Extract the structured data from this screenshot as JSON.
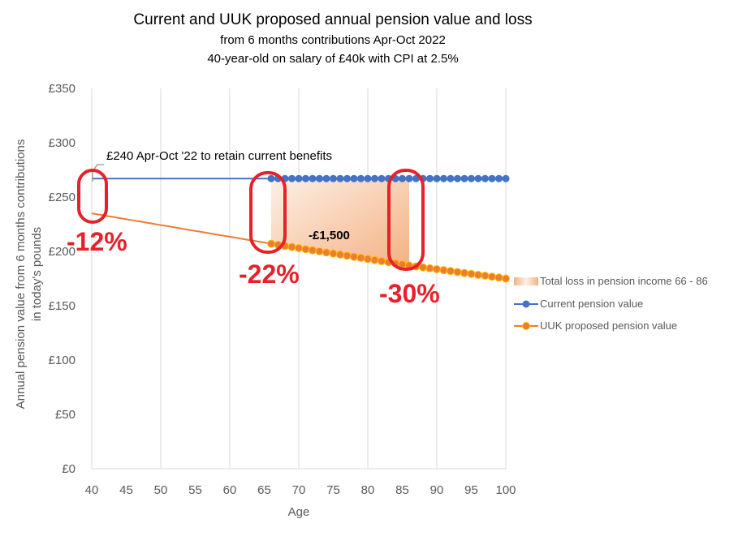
{
  "chart_data": {
    "type": "line",
    "title": "Current and UUK proposed annual pension value and loss",
    "subtitle": [
      "from 6 months contributions Apr-Oct 2022",
      "40-year-old on salary of £40k with CPI at 2.5%"
    ],
    "xlabel": "Age",
    "ylabel": [
      "Annual pension value from 6 months contributions",
      "in today's pounds"
    ],
    "xlim": [
      40,
      100
    ],
    "ylim": [
      0,
      350
    ],
    "xticks": [
      40,
      45,
      50,
      55,
      60,
      65,
      70,
      75,
      80,
      85,
      90,
      95,
      100
    ],
    "yticks": [
      0,
      50,
      100,
      150,
      200,
      250,
      300,
      350
    ],
    "ytick_labels": [
      "£0",
      "£50",
      "£100",
      "£150",
      "£200",
      "£250",
      "£300",
      "£350"
    ],
    "grid": "vertical",
    "legend_position": "right",
    "markers_from_age": 66,
    "series": [
      {
        "name": "Total loss in pension income 66 - 86",
        "type": "area",
        "range": [
          66,
          86
        ],
        "color": "#f4b183"
      },
      {
        "name": "Current pension value",
        "color": "#4472c4",
        "x_start": 40,
        "values": [
          267,
          267,
          267,
          267,
          267,
          267,
          267,
          267,
          267,
          267,
          267,
          267,
          267,
          267,
          267,
          267,
          267,
          267,
          267,
          267,
          267,
          267,
          267,
          267,
          267,
          267,
          267,
          267,
          267,
          267,
          267,
          267,
          267,
          267,
          267,
          267,
          267,
          267,
          267,
          267,
          267,
          267,
          267,
          267,
          267,
          267,
          267,
          267,
          267,
          267,
          267,
          267,
          267,
          267,
          267,
          267,
          267,
          267,
          267,
          267,
          267
        ]
      },
      {
        "name": "UUK proposed pension value",
        "color": "#ed7d31",
        "x_start": 40,
        "values": [
          235,
          233.9,
          232.8,
          231.8,
          230.7,
          229.6,
          228.5,
          227.5,
          226.4,
          225.3,
          224.2,
          223.2,
          222.1,
          221.0,
          219.9,
          218.8,
          217.8,
          216.7,
          215.6,
          214.5,
          213.5,
          212.4,
          211.3,
          210.2,
          209.2,
          208.1,
          207,
          206,
          205,
          204,
          203,
          202,
          201,
          200,
          199,
          198,
          197,
          196,
          195,
          194,
          193,
          192,
          191,
          190,
          189,
          188,
          187,
          186.1,
          185.3,
          184.4,
          183.6,
          182.7,
          181.9,
          181.0,
          180.1,
          179.3,
          178.4,
          177.6,
          176.7,
          175.9,
          175
        ]
      }
    ],
    "annotations": {
      "callout": "£240 Apr-Oct '22 to retain current benefits",
      "loss": "-£1,500",
      "pct_40": "-12%",
      "pct_66": "-22%",
      "pct_86": "-30%"
    }
  }
}
